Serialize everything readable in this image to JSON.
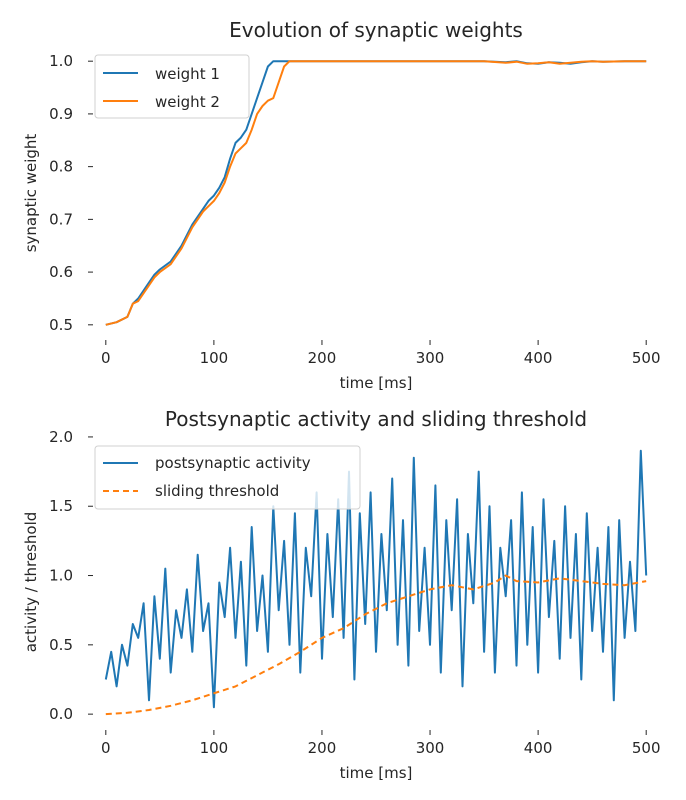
{
  "chart_data": [
    {
      "type": "line",
      "title": "Evolution of synaptic weights",
      "xlabel": "time [ms]",
      "ylabel": "synaptic weight",
      "xlim": [
        -10,
        510
      ],
      "ylim": [
        0.475,
        1.025
      ],
      "xticks": [
        0,
        100,
        200,
        300,
        400,
        500
      ],
      "yticks": [
        0.5,
        0.6,
        0.7,
        0.8,
        0.9,
        1.0
      ],
      "xtick_labels": [
        "0",
        "100",
        "200",
        "300",
        "400",
        "500"
      ],
      "ytick_labels": [
        "0.5",
        "0.6",
        "0.7",
        "0.8",
        "0.9",
        "1.0"
      ],
      "grid": false,
      "legend": "top-left",
      "series": [
        {
          "name": "weight 1",
          "color": "#1f77b4",
          "style": "solid",
          "x": [
            0,
            10,
            20,
            25,
            30,
            40,
            45,
            50,
            60,
            70,
            80,
            90,
            95,
            100,
            105,
            110,
            115,
            120,
            125,
            130,
            135,
            140,
            145,
            150,
            155,
            160,
            165,
            170,
            200,
            250,
            300,
            350,
            370,
            380,
            390,
            400,
            410,
            420,
            430,
            440,
            450,
            460,
            480,
            500
          ],
          "y": [
            0.5,
            0.505,
            0.515,
            0.54,
            0.55,
            0.58,
            0.595,
            0.605,
            0.62,
            0.65,
            0.69,
            0.72,
            0.735,
            0.745,
            0.76,
            0.78,
            0.815,
            0.845,
            0.855,
            0.87,
            0.9,
            0.93,
            0.96,
            0.99,
            1.0,
            1.0,
            1.0,
            1.0,
            1.0,
            1.0,
            1.0,
            1.0,
            0.998,
            1.0,
            0.996,
            0.995,
            0.998,
            0.997,
            0.995,
            0.998,
            1.0,
            0.999,
            1.0,
            1.0
          ]
        },
        {
          "name": "weight 2",
          "color": "#ff7f0e",
          "style": "solid",
          "x": [
            0,
            10,
            20,
            25,
            30,
            40,
            45,
            50,
            60,
            70,
            80,
            90,
            95,
            100,
            105,
            110,
            115,
            120,
            125,
            130,
            135,
            140,
            145,
            150,
            155,
            160,
            165,
            170,
            175,
            200,
            250,
            300,
            350,
            370,
            380,
            390,
            400,
            410,
            420,
            430,
            440,
            450,
            460,
            480,
            500
          ],
          "y": [
            0.5,
            0.505,
            0.515,
            0.54,
            0.545,
            0.575,
            0.59,
            0.6,
            0.615,
            0.645,
            0.685,
            0.715,
            0.725,
            0.735,
            0.75,
            0.77,
            0.8,
            0.825,
            0.835,
            0.845,
            0.87,
            0.9,
            0.915,
            0.925,
            0.93,
            0.96,
            0.99,
            1.0,
            1.0,
            1.0,
            1.0,
            1.0,
            1.0,
            0.997,
            0.999,
            0.995,
            0.996,
            0.998,
            0.995,
            0.997,
            0.999,
            1.0,
            0.999,
            1.0,
            1.0
          ]
        }
      ]
    },
    {
      "type": "line",
      "title": "Postsynaptic activity and sliding threshold",
      "xlabel": "time [ms]",
      "ylabel": "activity / threshold",
      "xlim": [
        -10,
        510
      ],
      "ylim": [
        -0.1,
        2.05
      ],
      "xticks": [
        0,
        100,
        200,
        300,
        400,
        500
      ],
      "yticks": [
        0.0,
        0.5,
        1.0,
        1.5,
        2.0
      ],
      "xtick_labels": [
        "0",
        "100",
        "200",
        "300",
        "400",
        "500"
      ],
      "ytick_labels": [
        "0.0",
        "0.5",
        "1.0",
        "1.5",
        "2.0"
      ],
      "grid": false,
      "legend": "top-left",
      "series": [
        {
          "name": "postsynaptic activity",
          "color": "#1f77b4",
          "style": "solid",
          "x": [
            0,
            5,
            10,
            15,
            20,
            25,
            30,
            35,
            40,
            45,
            50,
            55,
            60,
            65,
            70,
            75,
            80,
            85,
            90,
            95,
            100,
            105,
            110,
            115,
            120,
            125,
            130,
            135,
            140,
            145,
            150,
            155,
            160,
            165,
            170,
            175,
            180,
            185,
            190,
            195,
            200,
            205,
            210,
            215,
            220,
            225,
            230,
            235,
            240,
            245,
            250,
            255,
            260,
            265,
            270,
            275,
            280,
            285,
            290,
            295,
            300,
            305,
            310,
            315,
            320,
            325,
            330,
            335,
            340,
            345,
            350,
            355,
            360,
            365,
            370,
            375,
            380,
            385,
            390,
            395,
            400,
            405,
            410,
            415,
            420,
            425,
            430,
            435,
            440,
            445,
            450,
            455,
            460,
            465,
            470,
            475,
            480,
            485,
            490,
            495,
            500
          ],
          "y": [
            0.25,
            0.45,
            0.2,
            0.5,
            0.35,
            0.65,
            0.55,
            0.8,
            0.1,
            0.85,
            0.4,
            1.05,
            0.3,
            0.75,
            0.55,
            0.9,
            0.45,
            1.15,
            0.6,
            0.8,
            0.05,
            0.95,
            0.7,
            1.2,
            0.55,
            1.1,
            0.35,
            1.35,
            0.6,
            1.0,
            0.45,
            1.5,
            0.75,
            1.25,
            0.5,
            1.45,
            0.3,
            1.2,
            0.85,
            1.6,
            0.4,
            1.3,
            0.7,
            1.55,
            0.55,
            1.75,
            0.25,
            1.45,
            0.65,
            1.6,
            0.45,
            1.3,
            0.75,
            1.7,
            0.5,
            1.4,
            0.35,
            1.85,
            0.6,
            1.2,
            0.5,
            1.65,
            0.3,
            1.4,
            0.75,
            1.55,
            0.2,
            1.3,
            0.8,
            1.75,
            0.45,
            1.5,
            0.3,
            1.2,
            0.85,
            1.4,
            0.35,
            1.6,
            0.5,
            1.35,
            0.3,
            1.55,
            0.7,
            1.25,
            0.4,
            1.5,
            0.55,
            1.3,
            0.25,
            1.45,
            0.6,
            1.2,
            0.45,
            1.35,
            0.1,
            1.4,
            0.55,
            1.1,
            0.6,
            1.9,
            1.0
          ]
        },
        {
          "name": "sliding threshold",
          "color": "#ff7f0e",
          "style": "dashed",
          "x": [
            0,
            20,
            40,
            60,
            80,
            100,
            120,
            140,
            160,
            180,
            200,
            220,
            240,
            260,
            280,
            300,
            320,
            340,
            360,
            370,
            380,
            400,
            420,
            440,
            460,
            480,
            500
          ],
          "y": [
            0.0,
            0.01,
            0.03,
            0.06,
            0.1,
            0.15,
            0.2,
            0.28,
            0.36,
            0.45,
            0.55,
            0.62,
            0.72,
            0.8,
            0.85,
            0.9,
            0.93,
            0.9,
            0.95,
            1.0,
            0.96,
            0.95,
            0.98,
            0.96,
            0.94,
            0.93,
            0.96
          ]
        }
      ]
    }
  ]
}
